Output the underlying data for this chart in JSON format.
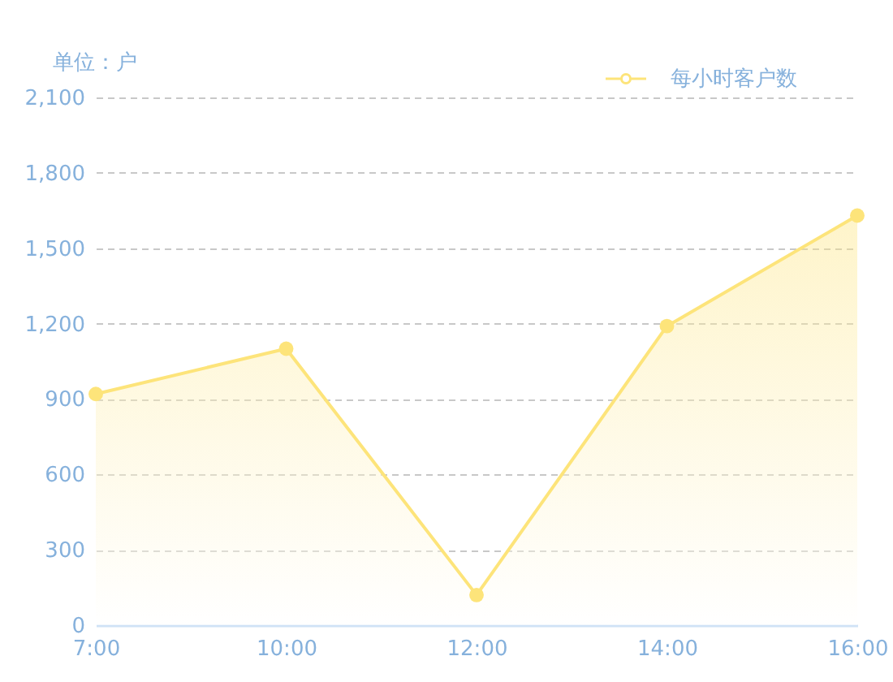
{
  "chart_data": {
    "type": "area",
    "ylabel": "单位：户",
    "categories": [
      "7:00",
      "10:00",
      "12:00",
      "14:00",
      "16:00"
    ],
    "series": [
      {
        "name": "每小时客户数",
        "color": "#fde47a",
        "values": [
          920,
          1100,
          120,
          1190,
          1630
        ]
      }
    ],
    "ylim": [
      0,
      2100
    ],
    "yticks": [
      0,
      300,
      600,
      900,
      {
        "value": 1200,
        "label": "1,200"
      },
      {
        "value": 1500,
        "label": "1,500"
      },
      {
        "value": 1800,
        "label": "1,800"
      },
      {
        "value": 2100,
        "label": "2,100"
      }
    ],
    "grid": "y",
    "legend": "top right",
    "marker": "circle"
  }
}
